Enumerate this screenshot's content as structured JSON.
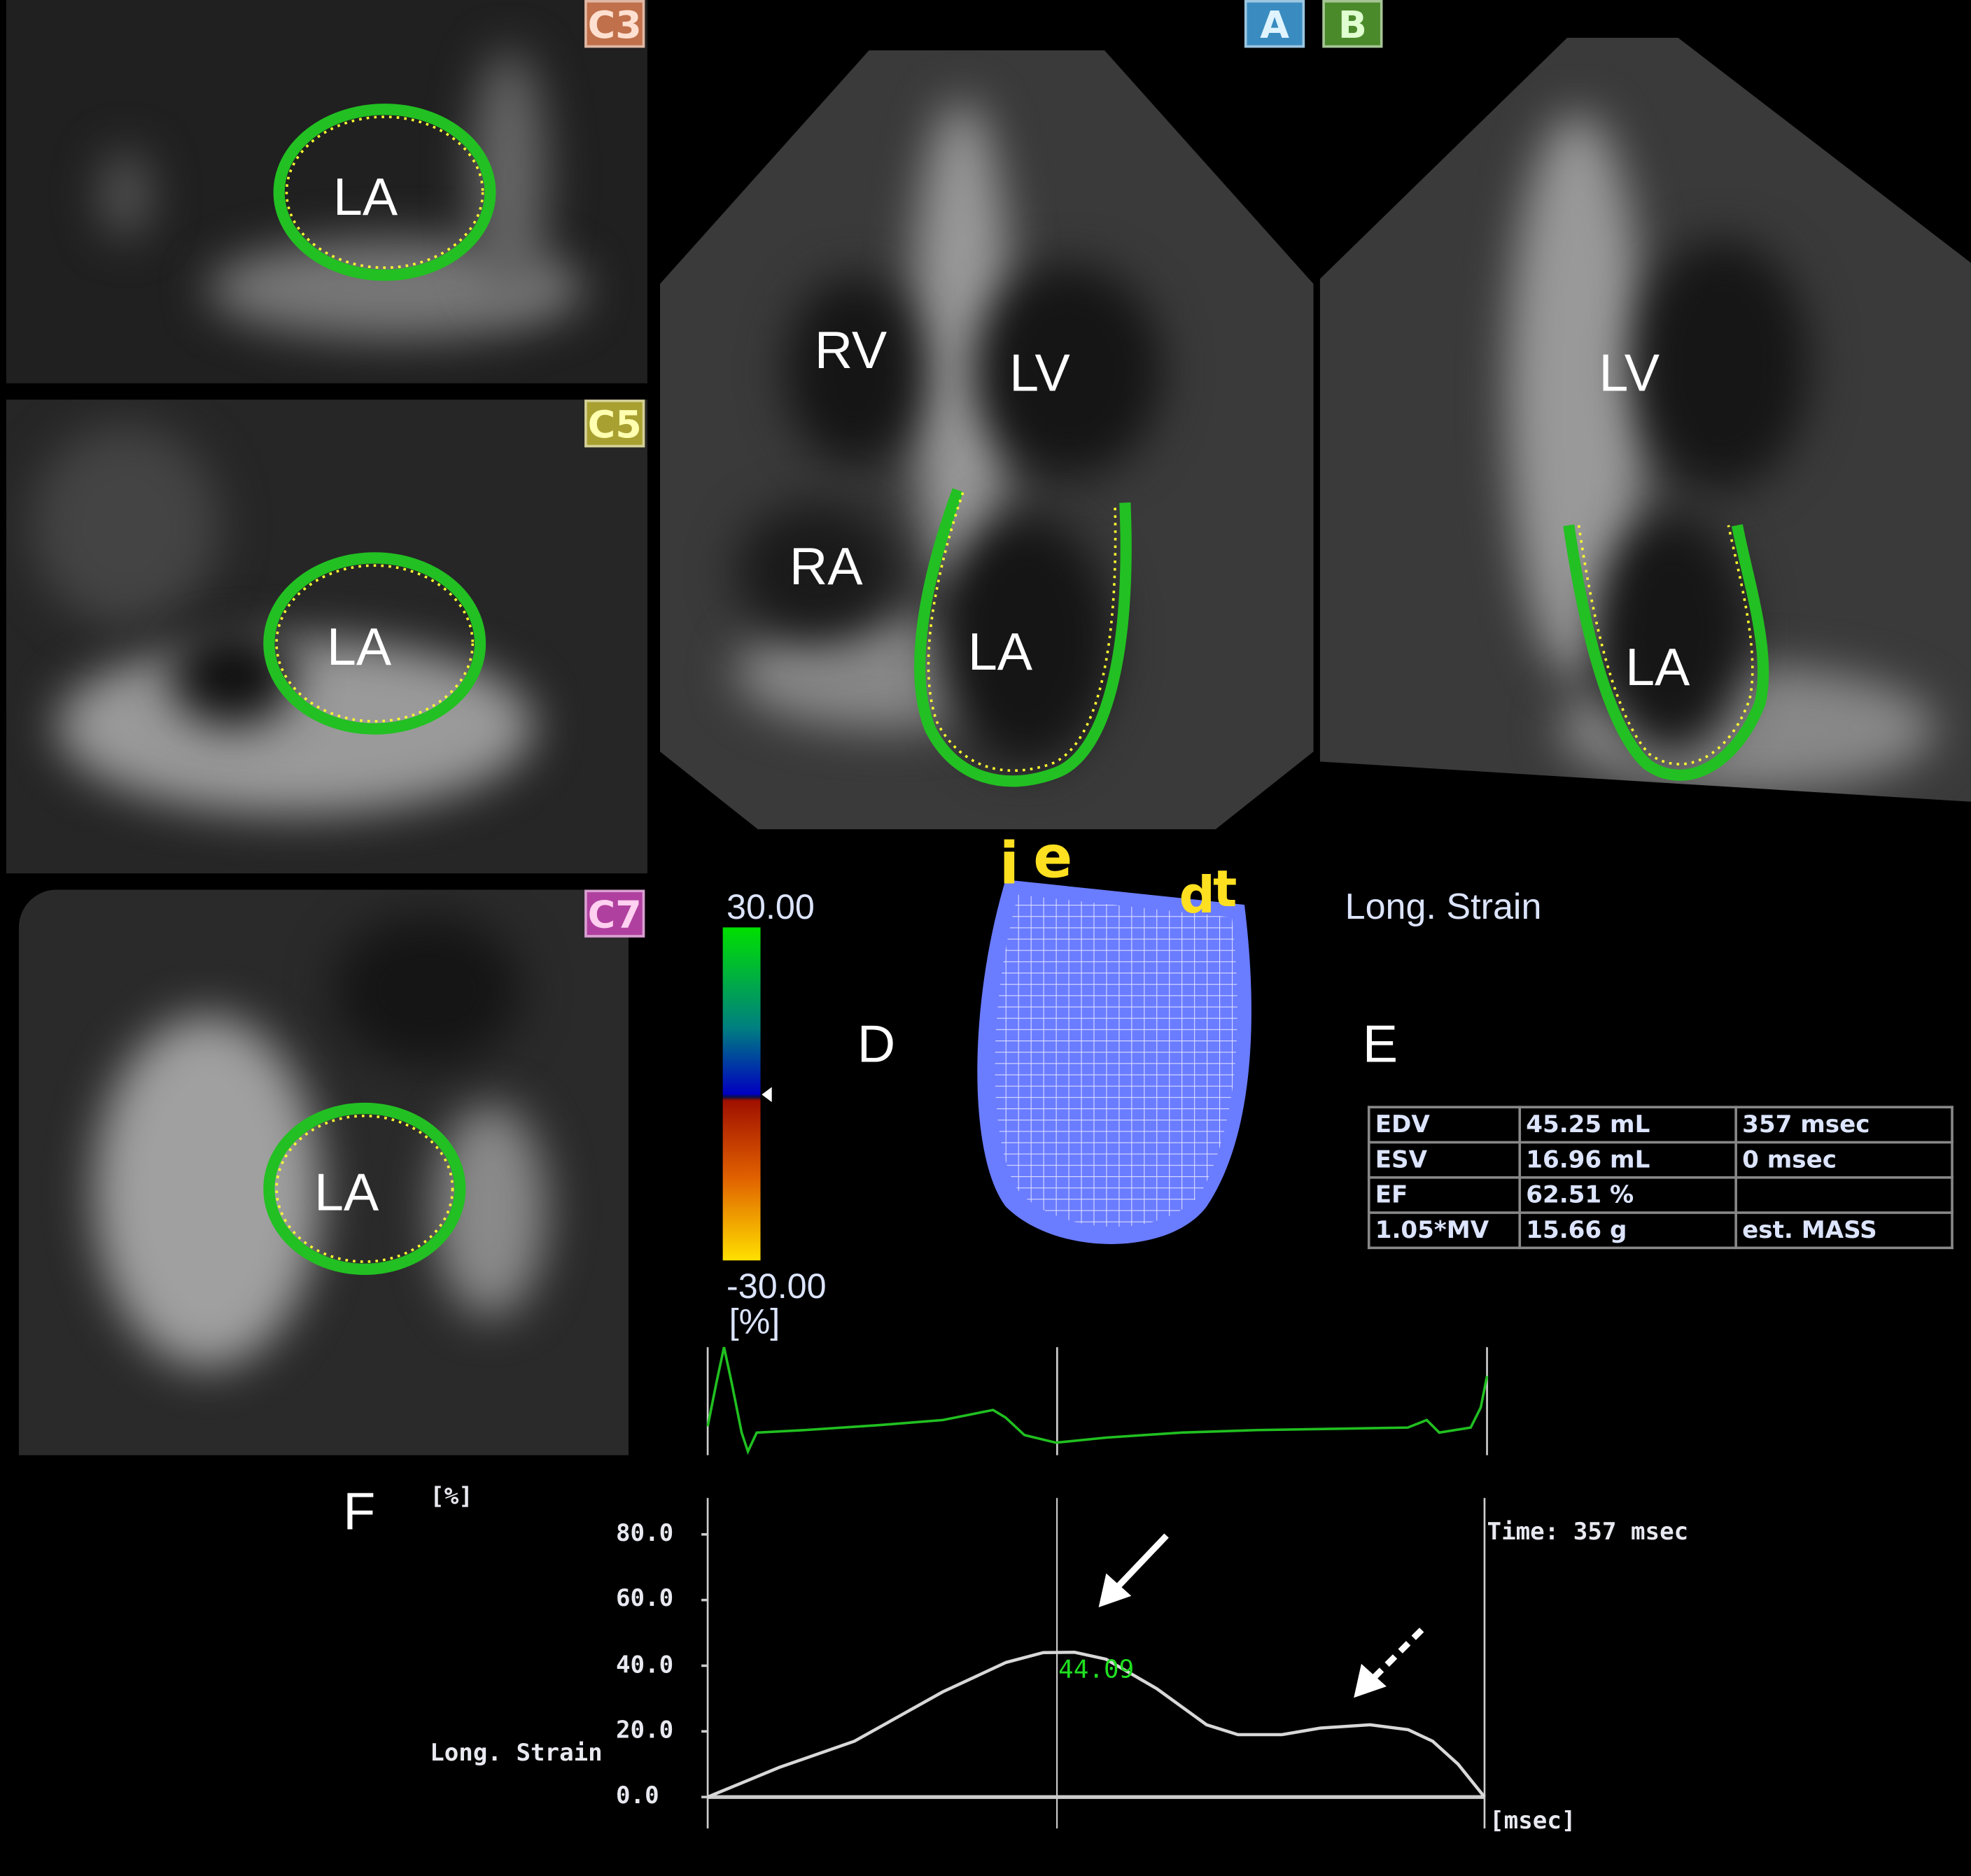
{
  "panels": {
    "c3": {
      "tag": "C3",
      "tag_color": "#c0704a",
      "label": "LA"
    },
    "c5": {
      "tag": "C5",
      "tag_color": "#a8a030",
      "label": "LA"
    },
    "c7": {
      "tag": "C7",
      "tag_color": "#b040a0",
      "label": "LA"
    },
    "a": {
      "tag": "A",
      "tag_color": "#3a8cc0",
      "labels": {
        "rv": "RV",
        "lv": "LV",
        "ra": "RA",
        "la": "LA"
      }
    },
    "b": {
      "tag": "B",
      "tag_color": "#4a8a2a",
      "labels": {
        "lv": "LV",
        "la": "LA"
      }
    }
  },
  "contour_colors": {
    "outer": "#22c022",
    "inner": "#ffff30"
  },
  "colorbar": {
    "max": "30.00",
    "min": "-30.00",
    "unit": "[%]",
    "colors": [
      "#00e000",
      "#0000c0",
      "#a01000",
      "#ffe000"
    ]
  },
  "section_letters": {
    "d": "D",
    "e": "E",
    "f": "F"
  },
  "model": {
    "title": "Long. Strain",
    "marker_letters": [
      "i",
      "e",
      "d",
      "t"
    ],
    "mesh_color": "#6a7cff"
  },
  "measurements": {
    "rows": [
      [
        "EDV",
        "45.25 mL",
        "357 msec"
      ],
      [
        "ESV",
        "16.96 mL",
        "0 msec"
      ],
      [
        "EF",
        "62.51 %",
        ""
      ],
      [
        "1.05*MV",
        "15.66 g",
        "est. MASS"
      ]
    ]
  },
  "chart_data": {
    "type": "line",
    "ylabel": "Long. Strain",
    "yunit": "[%]",
    "xunit": "[msec]",
    "y_ticks": [
      "80.0",
      "60.0",
      "40.0",
      "20.0",
      "0.0"
    ],
    "ylim": [
      0,
      80
    ],
    "xlim": [
      0,
      794
    ],
    "cursor_time_label": "Time: 357 msec",
    "cursor_x": 357,
    "peak_label": "44.09",
    "peak_color": "#20e020",
    "line_color": "#d8d8d8",
    "x": [
      0,
      73,
      150,
      240,
      305,
      343,
      375,
      407,
      459,
      510,
      542,
      587,
      626,
      677,
      716,
      741,
      767,
      794
    ],
    "y": [
      0,
      9,
      17,
      32,
      41,
      44,
      44.09,
      42,
      33,
      22,
      19,
      19,
      21,
      22,
      20.5,
      17,
      10,
      0
    ],
    "annotations": [
      "solid arrow at peak strain",
      "dashed arrow at late plateau"
    ]
  },
  "ecg": {
    "color": "#20c020"
  }
}
